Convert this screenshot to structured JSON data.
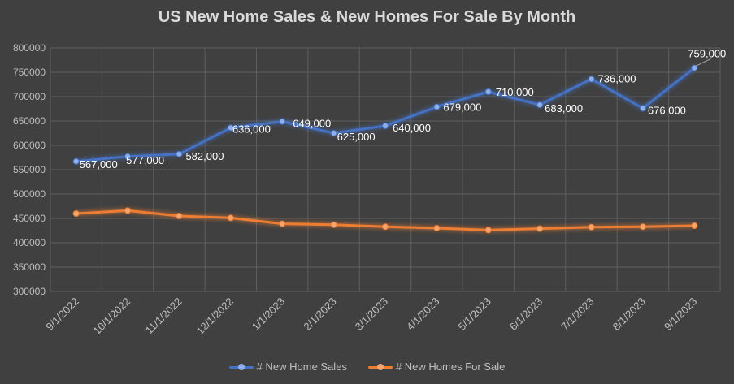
{
  "chart_data": {
    "type": "line",
    "title": "US New Home Sales & New Homes For Sale By Month",
    "categories": [
      "9/1/2022",
      "10/1/2022",
      "11/1/2022",
      "12/1/2022",
      "1/1/2023",
      "2/1/2023",
      "3/1/2023",
      "4/1/2023",
      "5/1/2023",
      "6/1/2023",
      "7/1/2023",
      "8/1/2023",
      "9/1/2023"
    ],
    "ylim": [
      300000,
      800000
    ],
    "yticks": [
      "300000",
      "350000",
      "400000",
      "450000",
      "500000",
      "550000",
      "600000",
      "650000",
      "700000",
      "750000",
      "800000"
    ],
    "grid": true,
    "legend_position": "bottom",
    "series": [
      {
        "name": "# New Home Sales",
        "color": "#5b84d6",
        "values": [
          567000,
          577000,
          582000,
          636000,
          649000,
          625000,
          640000,
          679000,
          710000,
          683000,
          736000,
          676000,
          759000
        ],
        "labels": [
          "567,000",
          "577,000",
          "582,000",
          "636,000",
          "649,000",
          "625,000",
          "640,000",
          "679,000",
          "710,000",
          "683,000",
          "736,000",
          "676,000",
          "759,000"
        ]
      },
      {
        "name": "# New Homes For Sale",
        "color": "#ed7d31",
        "values": [
          460000,
          466000,
          455000,
          451000,
          439000,
          437000,
          433000,
          430000,
          426000,
          429000,
          432000,
          433000,
          435000
        ]
      }
    ]
  }
}
